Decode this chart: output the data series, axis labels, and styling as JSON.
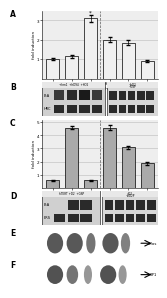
{
  "panel_A": {
    "bars": [
      1.0,
      1.15,
      3.1,
      2.0,
      1.85,
      0.9
    ],
    "bar_color": "#f0f0f0",
    "error_bars": [
      0.06,
      0.06,
      0.18,
      0.12,
      0.12,
      0.06
    ],
    "ylabel": "fold induction",
    "ylim": [
      0,
      3.5
    ],
    "yticks": [
      1,
      2,
      3
    ],
    "hlines": [
      1.0,
      2.0,
      3.0
    ],
    "label_A": "A"
  },
  "panel_C": {
    "bars": [
      0.55,
      4.6,
      0.55,
      4.6,
      3.1,
      1.85
    ],
    "bar_color": "#aaaaaa",
    "error_bars": [
      0.04,
      0.12,
      0.04,
      0.18,
      0.12,
      0.1
    ],
    "ylabel": "fold induction",
    "ylim": [
      0,
      5.2
    ],
    "yticks": [
      1,
      2,
      3,
      4,
      5
    ],
    "hlines": [
      1.0,
      2.0,
      3.0,
      4.0,
      5.0
    ],
    "label_C": "C"
  },
  "bg_white": "#ffffff",
  "bg_light": "#eeeeee",
  "blot_bg": "#c8c8c8",
  "blot_bg2": "#b8b8b8",
  "blot_dark": "#2a2a2a",
  "blot_medium": "#555555",
  "panel_E_bg": "#888888",
  "panel_F_bg": "#909090"
}
